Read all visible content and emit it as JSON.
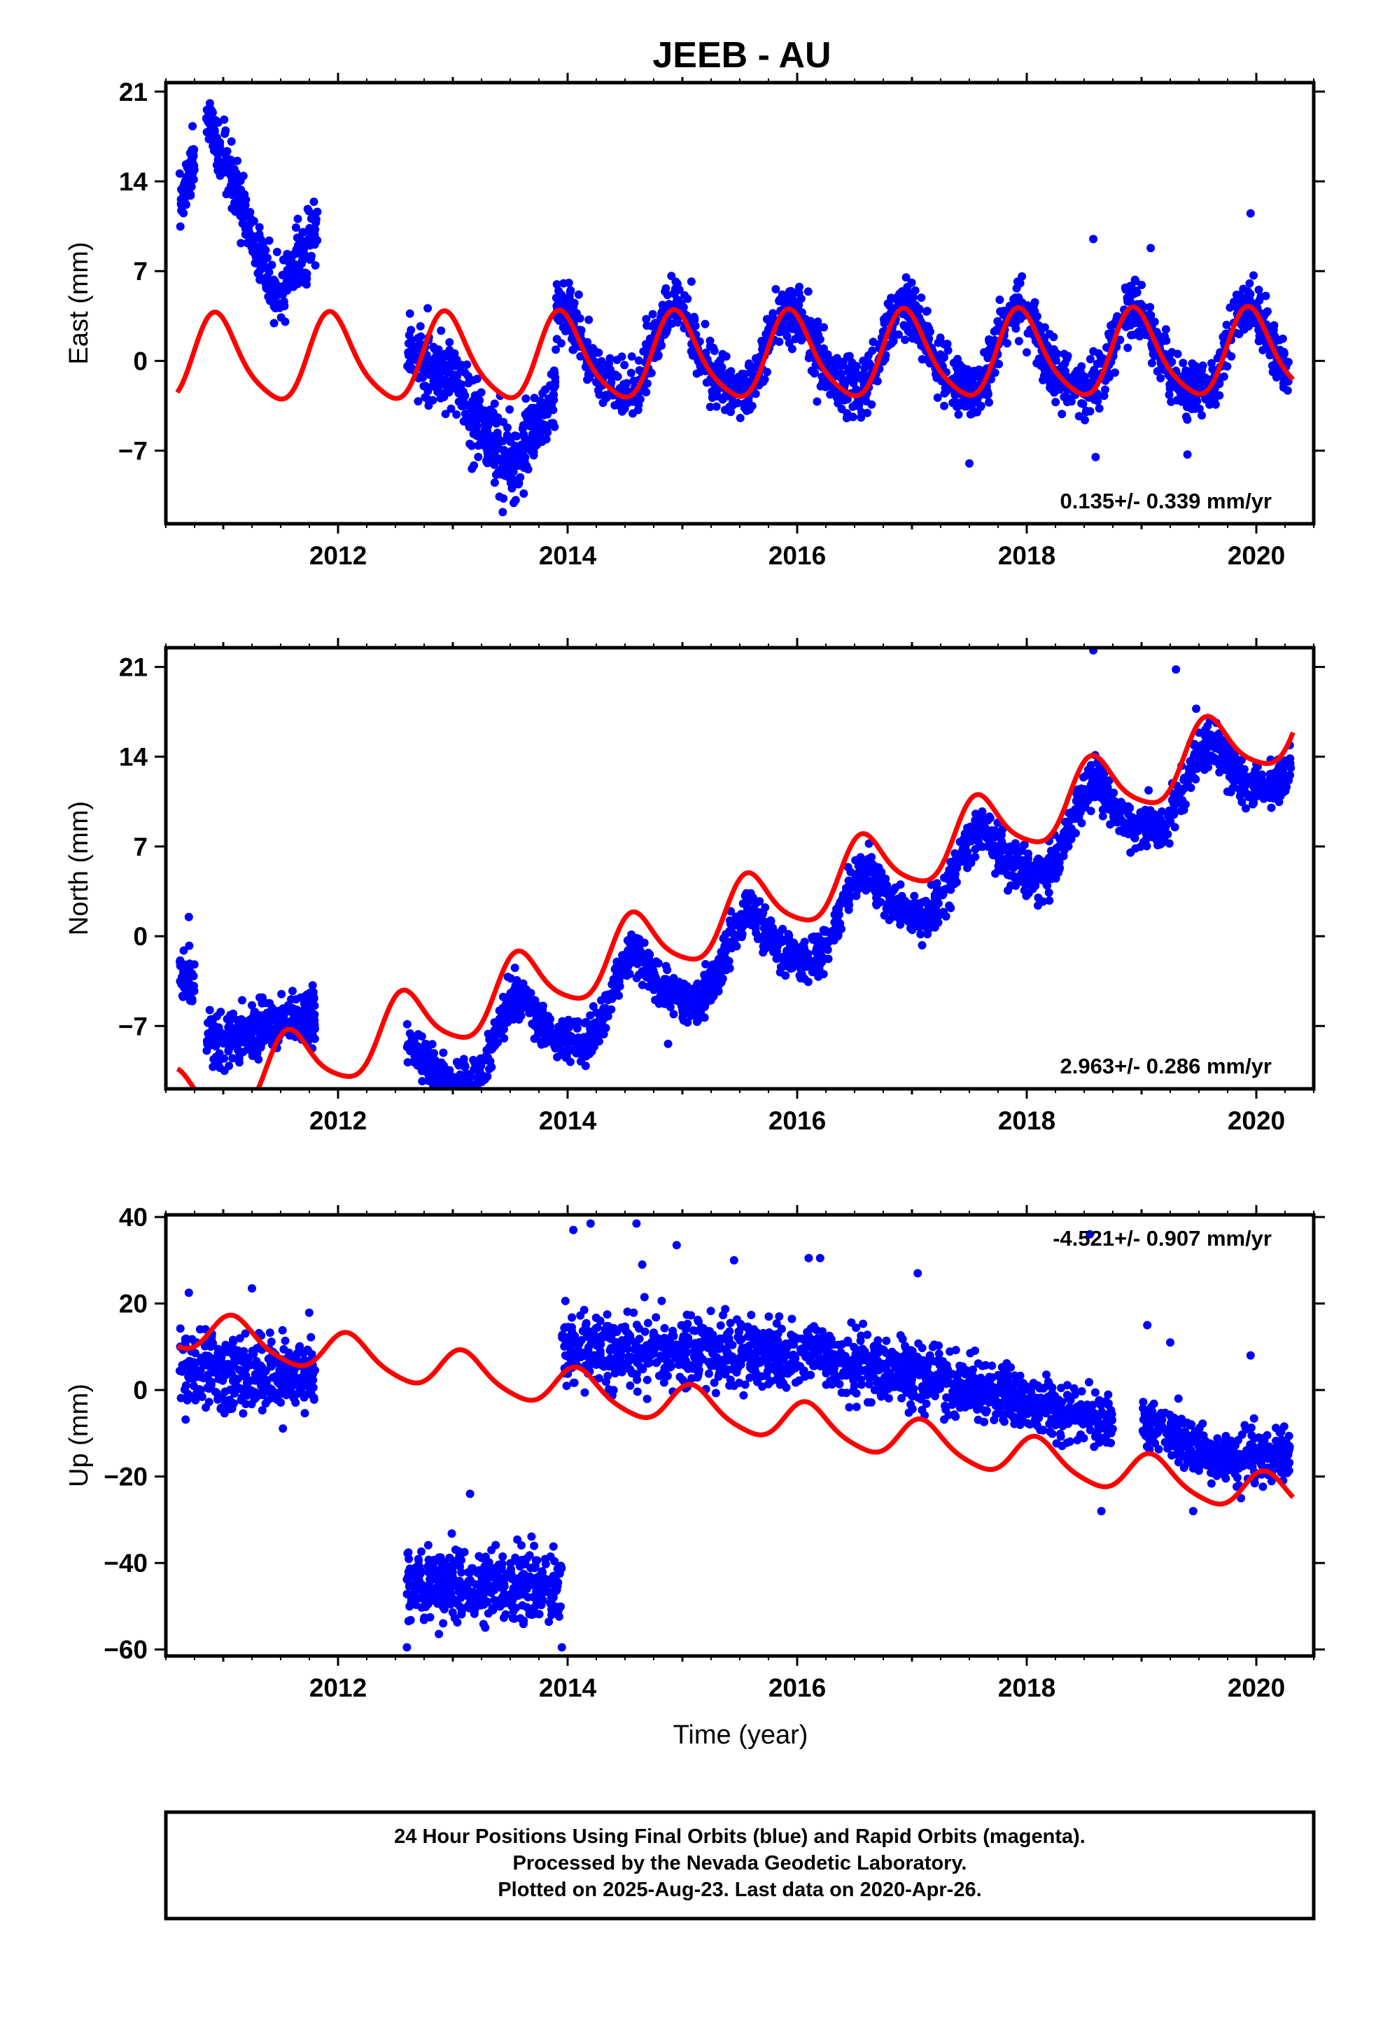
{
  "title": "JEEB - AU",
  "colors": {
    "points": "#0000ff",
    "model": "#ff0000",
    "frame": "#000000"
  },
  "chart_data": [
    {
      "type": "scatter",
      "name": "east",
      "ylabel": "East (mm)",
      "xlim": [
        2010.5,
        2020.5
      ],
      "ylim": [
        -12.7,
        21.7
      ],
      "xticks": [
        2012,
        2014,
        2016,
        2018,
        2020
      ],
      "yticks": [
        21,
        14,
        7,
        0,
        -7
      ],
      "rate_label": "0.135+/- 0.339 mm/yr",
      "rate_position": "bottom-right",
      "points_segments": [
        {
          "start": 2010.62,
          "end": 2010.75,
          "y_start": 12.5,
          "y_end": 15.5,
          "spread": 1.8,
          "n": 60
        },
        {
          "start": 2010.85,
          "end": 2011.45,
          "y_start": 19.5,
          "y_end": 5.0,
          "spread": 2.0,
          "n": 200
        },
        {
          "start": 2011.45,
          "end": 2011.82,
          "y_start": 5.0,
          "y_end": 10.0,
          "spread": 2.0,
          "n": 120
        },
        {
          "start": 2012.6,
          "end": 2013.05,
          "y_start": 0.5,
          "y_end": -1.5,
          "spread": 2.2,
          "n": 150
        },
        {
          "start": 2013.05,
          "end": 2013.55,
          "y_start": -3.0,
          "y_end": -9.0,
          "spread": 2.6,
          "n": 170
        },
        {
          "start": 2013.55,
          "end": 2013.9,
          "y_start": -8.0,
          "y_end": -2.0,
          "spread": 2.2,
          "n": 110
        }
      ],
      "points_seasonal": {
        "start": 2013.9,
        "end": 2020.3,
        "offset": 0.5,
        "amplitude": 3.2,
        "phase_peak": 0.95,
        "spread": 1.8,
        "n": 1900
      },
      "model_curve": {
        "start": 2010.6,
        "end": 2020.32,
        "trend": 0.05,
        "offset": 0.2,
        "amplitude": 3.3,
        "phase_peak": 0.95
      },
      "outliers": [
        [
          2018.58,
          9.5
        ],
        [
          2019.08,
          8.8
        ],
        [
          2019.95,
          11.5
        ],
        [
          2017.5,
          -8.0
        ],
        [
          2018.6,
          -7.5
        ],
        [
          2019.4,
          -7.3
        ]
      ]
    },
    {
      "type": "scatter",
      "name": "north",
      "ylabel": "North (mm)",
      "xlim": [
        2010.5,
        2020.5
      ],
      "ylim": [
        -11.9,
        22.5
      ],
      "xticks": [
        2012,
        2014,
        2016,
        2018,
        2020
      ],
      "yticks": [
        21,
        14,
        7,
        0,
        -7
      ],
      "rate_label": "2.963+/- 0.286 mm/yr",
      "rate_position": "bottom-right",
      "points_segments": [
        {
          "start": 2010.62,
          "end": 2010.75,
          "y_start": -3.0,
          "y_end": -3.5,
          "spread": 1.5,
          "n": 50
        },
        {
          "start": 2010.85,
          "end": 2011.8,
          "y_start": -8.5,
          "y_end": -6.0,
          "spread": 1.6,
          "n": 320
        }
      ],
      "points_seasonal": {
        "start": 2012.6,
        "end": 2020.3,
        "base": -11.0,
        "trend": 3.3,
        "t0": 2012.6,
        "amplitude": 2.6,
        "phase_peak": 0.58,
        "spread": 1.4,
        "n": 2300
      },
      "model_curve": {
        "start": 2010.6,
        "end": 2020.32,
        "base": -13.2,
        "trend": 3.05,
        "t0": 2010.6,
        "amplitude": 2.6,
        "phase_peak": 0.58
      },
      "outliers": [
        [
          2010.7,
          1.5
        ],
        [
          2018.58,
          22.3
        ],
        [
          2019.3,
          20.8
        ],
        [
          2018.1,
          3.0
        ],
        [
          2020.2,
          11.5
        ]
      ]
    },
    {
      "type": "scatter",
      "name": "up",
      "ylabel": "Up (mm)",
      "xlabel": "Time (year)",
      "xlim": [
        2010.5,
        2020.5
      ],
      "ylim": [
        -61.5,
        40.5
      ],
      "xticks": [
        2012,
        2014,
        2016,
        2018,
        2020
      ],
      "yticks": [
        40,
        20,
        0,
        -20,
        -40,
        -60
      ],
      "rate_label": "-4.521+/- 0.907 mm/yr",
      "rate_position": "top-right",
      "points_segments": [
        {
          "start": 2010.62,
          "end": 2011.8,
          "y_start": 4.0,
          "y_end": 4.0,
          "spread": 7.0,
          "n": 360
        },
        {
          "start": 2012.6,
          "end": 2013.95,
          "y_start": -44.0,
          "y_end": -46.0,
          "spread": 7.0,
          "n": 430
        },
        {
          "start": 2013.95,
          "end": 2015.45,
          "y_start": 10.0,
          "y_end": 8.0,
          "spread": 6.5,
          "n": 420
        },
        {
          "start": 2015.45,
          "end": 2017.3,
          "y_start": 10.0,
          "y_end": 2.0,
          "spread": 6.0,
          "n": 560
        },
        {
          "start": 2017.3,
          "end": 2018.75,
          "y_start": 2.0,
          "y_end": -8.0,
          "spread": 5.5,
          "n": 430
        },
        {
          "start": 2019.0,
          "end": 2019.55,
          "y_start": -7.0,
          "y_end": -14.0,
          "spread": 5.0,
          "n": 160
        },
        {
          "start": 2019.55,
          "end": 2020.3,
          "y_start": -16.0,
          "y_end": -16.0,
          "spread": 5.0,
          "n": 240
        }
      ],
      "model_curve": {
        "start": 2010.6,
        "end": 2020.32,
        "base": 14.0,
        "trend": -4.0,
        "t0": 2010.6,
        "amplitude": 4.5,
        "phase_peak": 0.1
      },
      "outliers": [
        [
          2014.05,
          37
        ],
        [
          2014.2,
          38.5
        ],
        [
          2014.6,
          38.5
        ],
        [
          2014.95,
          33.5
        ],
        [
          2014.65,
          29
        ],
        [
          2015.45,
          30
        ],
        [
          2016.1,
          30.5
        ],
        [
          2016.2,
          30.5
        ],
        [
          2017.05,
          27
        ],
        [
          2018.55,
          36
        ],
        [
          2019.05,
          15
        ],
        [
          2019.25,
          11
        ],
        [
          2019.95,
          8
        ],
        [
          2018.65,
          -28
        ],
        [
          2019.45,
          -28
        ],
        [
          2011.25,
          23.5
        ],
        [
          2010.7,
          22.5
        ],
        [
          2012.6,
          -59.5
        ],
        [
          2013.95,
          -59.5
        ],
        [
          2013.15,
          -24
        ]
      ]
    }
  ],
  "footnote": {
    "line1": "24 Hour Positions Using Final Orbits (blue) and Rapid Orbits (magenta).",
    "line2": "Processed by the Nevada Geodetic Laboratory.",
    "line3": "Plotted on 2025-Aug-23. Last data on 2020-Apr-26."
  }
}
